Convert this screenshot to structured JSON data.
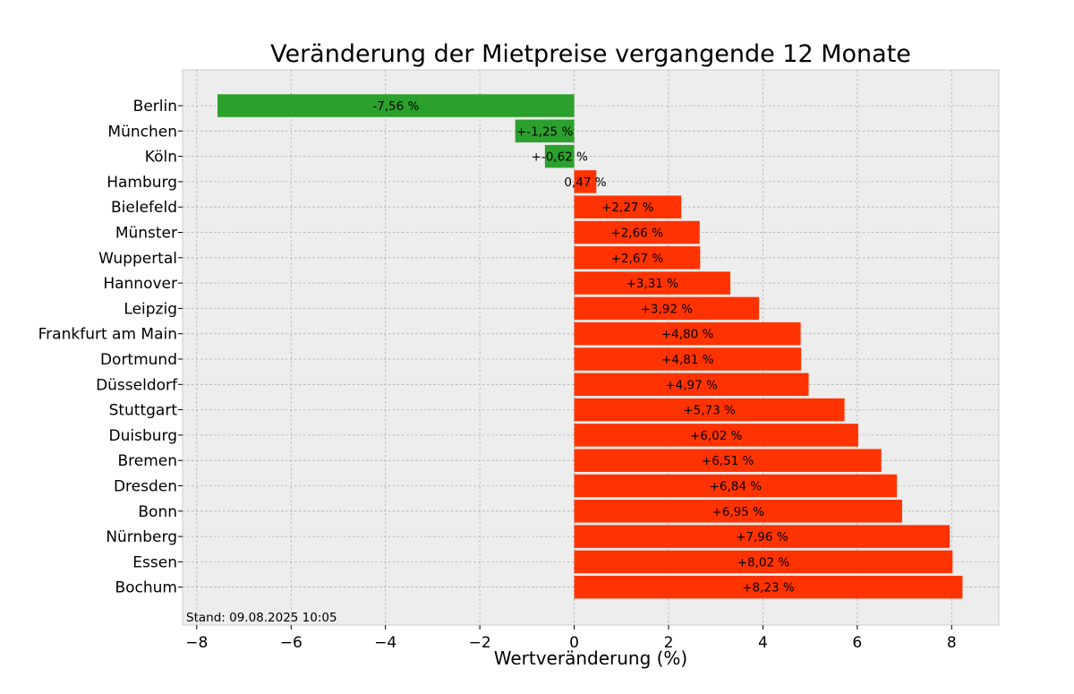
{
  "chart_data": {
    "type": "bar",
    "orientation": "horizontal",
    "title": "Veränderung der Mietpreise vergangende 12 Monate",
    "xlabel": "Wertveränderung (%)",
    "ylabel": "",
    "xlim": [
      -8.3,
      9.0
    ],
    "xticks": [
      -8,
      -6,
      -4,
      -2,
      0,
      2,
      4,
      6,
      8
    ],
    "xtick_labels": [
      "−8",
      "−6",
      "−4",
      "−2",
      "0",
      "2",
      "4",
      "6",
      "8"
    ],
    "grid": true,
    "categories": [
      "Berlin",
      "München",
      "Köln",
      "Hamburg",
      "Bielefeld",
      "Münster",
      "Wuppertal",
      "Hannover",
      "Leipzig",
      "Frankfurt am Main",
      "Dortmund",
      "Düsseldorf",
      "Stuttgart",
      "Duisburg",
      "Bremen",
      "Dresden",
      "Bonn",
      "Nürnberg",
      "Essen",
      "Bochum"
    ],
    "values": [
      -7.56,
      -1.25,
      -0.62,
      0.47,
      2.27,
      2.66,
      2.67,
      3.31,
      3.92,
      4.8,
      4.81,
      4.97,
      5.73,
      6.02,
      6.51,
      6.84,
      6.95,
      7.96,
      8.02,
      8.23
    ],
    "value_labels": [
      "-7,56 %",
      "+-1,25 %",
      "+-0,62 %",
      "0,47 %",
      "+2,27 %",
      "+2,66 %",
      "+2,67 %",
      "+3,31 %",
      "+3,92 %",
      "+4,80 %",
      "+4,81 %",
      "+4,97 %",
      "+5,73 %",
      "+6,02 %",
      "+6,51 %",
      "+6,84 %",
      "+6,95 %",
      "+7,96 %",
      "+8,02 %",
      "+8,23 %"
    ],
    "colors": {
      "negative": "#2ca02c",
      "positive": "#ff3300",
      "plot_background": "#ededed",
      "plot_border": "#cccccc"
    },
    "footnote": "Stand: 09.08.2025 10:05"
  }
}
